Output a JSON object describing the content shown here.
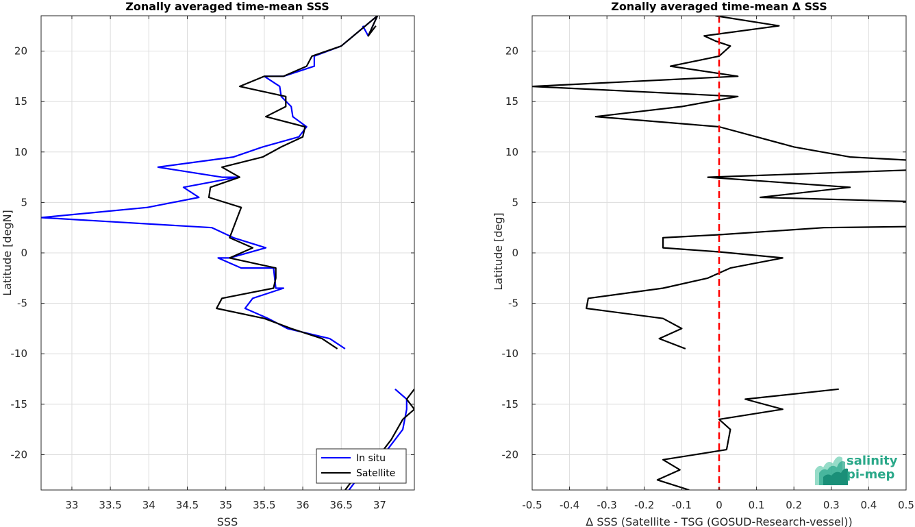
{
  "chart_data": [
    {
      "type": "line",
      "title": "Zonally averaged time-mean SSS",
      "xlabel": "SSS",
      "ylabel": "Latitude [degN]",
      "xlim": [
        32.6,
        37.45
      ],
      "ylim": [
        -23.5,
        23.5
      ],
      "xticks": [
        "33",
        "33.5",
        "34",
        "34.5",
        "35",
        "35.5",
        "36",
        "36.5",
        "37"
      ],
      "yticks": [
        "20",
        "15",
        "10",
        "5",
        "0",
        "-5",
        "-10",
        "-15",
        "-20"
      ],
      "grid": true,
      "legend": "bottom-right",
      "series": [
        {
          "name": "In situ",
          "color": "#0000ff",
          "segments": [
            [
              [
                36.78,
                22.5
              ],
              [
                36.85,
                21.5
              ],
              [
                36.97,
                23.5
              ],
              [
                36.5,
                20.5
              ],
              [
                36.15,
                19.5
              ],
              [
                36.15,
                18.5
              ],
              [
                35.75,
                17.5
              ],
              [
                35.5,
                17.5
              ],
              [
                35.7,
                16.5
              ],
              [
                35.72,
                15.5
              ],
              [
                35.85,
                14.5
              ],
              [
                35.87,
                13.5
              ],
              [
                36.05,
                12.5
              ],
              [
                35.95,
                11.5
              ],
              [
                35.48,
                10.5
              ],
              [
                35.1,
                9.5
              ],
              [
                34.12,
                8.5
              ],
              [
                34.95,
                7.5
              ],
              [
                35.15,
                7.5
              ],
              [
                34.45,
                6.5
              ],
              [
                34.65,
                5.5
              ],
              [
                33.98,
                4.5
              ],
              [
                32.6,
                3.5
              ],
              [
                34.82,
                2.5
              ],
              [
                35.1,
                1.5
              ],
              [
                35.52,
                0.5
              ],
              [
                35.05,
                -0.5
              ],
              [
                34.9,
                -0.5
              ],
              [
                35.2,
                -1.5
              ],
              [
                35.62,
                -1.5
              ],
              [
                35.65,
                -3.5
              ],
              [
                35.75,
                -3.5
              ],
              [
                35.35,
                -4.5
              ],
              [
                35.25,
                -5.5
              ],
              [
                35.55,
                -6.5
              ],
              [
                35.8,
                -7.5
              ],
              [
                36.35,
                -8.5
              ],
              [
                36.55,
                -9.5
              ]
            ],
            [
              [
                37.2,
                -13.5
              ],
              [
                37.35,
                -14.5
              ],
              [
                37.35,
                -15.5
              ],
              [
                37.3,
                -17.5
              ],
              [
                37.2,
                -18.5
              ],
              [
                37.0,
                -20.5
              ],
              [
                36.82,
                -21.5
              ],
              [
                36.7,
                -22.5
              ],
              [
                36.6,
                -23.5
              ]
            ]
          ]
        },
        {
          "name": "Satellite",
          "color": "#000000",
          "segments": [
            [
              [
                36.95,
                22.5
              ],
              [
                36.85,
                21.5
              ],
              [
                36.97,
                23.5
              ],
              [
                36.5,
                20.5
              ],
              [
                36.12,
                19.5
              ],
              [
                36.05,
                18.5
              ],
              [
                35.75,
                17.5
              ],
              [
                35.5,
                17.5
              ],
              [
                35.18,
                16.5
              ],
              [
                35.78,
                15.5
              ],
              [
                35.78,
                14.5
              ],
              [
                35.52,
                13.5
              ],
              [
                36.03,
                12.5
              ],
              [
                36.0,
                11.5
              ],
              [
                35.72,
                10.5
              ],
              [
                35.48,
                9.5
              ],
              [
                34.95,
                8.5
              ],
              [
                35.18,
                7.5
              ],
              [
                34.8,
                6.5
              ],
              [
                34.78,
                5.5
              ],
              [
                35.2,
                4.5
              ],
              [
                35.15,
                3.5
              ],
              [
                35.1,
                2.5
              ],
              [
                35.05,
                1.5
              ],
              [
                35.35,
                0.5
              ],
              [
                35.05,
                -0.5
              ],
              [
                35.65,
                -1.5
              ],
              [
                35.65,
                -2.5
              ],
              [
                35.62,
                -3.5
              ],
              [
                34.95,
                -4.5
              ],
              [
                34.88,
                -5.5
              ],
              [
                35.5,
                -6.5
              ],
              [
                35.85,
                -7.5
              ],
              [
                36.25,
                -8.5
              ],
              [
                36.45,
                -9.5
              ]
            ],
            [
              [
                37.45,
                -13.5
              ],
              [
                37.35,
                -14.5
              ],
              [
                37.45,
                -15.5
              ],
              [
                37.3,
                -16.5
              ],
              [
                37.15,
                -18.5
              ],
              [
                36.95,
                -20.5
              ],
              [
                36.8,
                -21.5
              ],
              [
                36.65,
                -22.5
              ],
              [
                36.55,
                -23.5
              ]
            ]
          ]
        }
      ]
    },
    {
      "type": "line",
      "title": "Zonally averaged time-mean Δ SSS",
      "xlabel": "Δ SSS (Satellite - TSG (GOSUD-Research-vessel))",
      "ylabel": "Latitude [deg]",
      "xlim": [
        -0.5,
        0.5
      ],
      "ylim": [
        -23.5,
        23.5
      ],
      "xticks": [
        "-0.5",
        "-0.4",
        "-0.3",
        "-0.2",
        "-0.1",
        "0",
        "0.1",
        "0.2",
        "0.3",
        "0.4",
        "0.5"
      ],
      "yticks": [
        "20",
        "15",
        "10",
        "5",
        "0",
        "-5",
        "-10",
        "-15",
        "-20"
      ],
      "grid": true,
      "reference_line": {
        "x": 0,
        "color": "#ff0000",
        "style": "dashed"
      },
      "series": [
        {
          "color": "#000000",
          "segments": [
            [
              [
                -0.01,
                23.5
              ],
              [
                0.16,
                22.5
              ],
              [
                -0.04,
                21.5
              ],
              [
                -0.01,
                21.0
              ],
              [
                0.03,
                20.5
              ],
              [
                0.0,
                19.5
              ],
              [
                -0.13,
                18.5
              ],
              [
                0.05,
                17.5
              ],
              [
                -0.5,
                16.5
              ],
              [
                0.05,
                15.5
              ],
              [
                -0.1,
                14.5
              ],
              [
                -0.33,
                13.5
              ],
              [
                0.0,
                12.5
              ],
              [
                0.1,
                11.5
              ],
              [
                0.2,
                10.5
              ],
              [
                0.35,
                9.5
              ],
              [
                0.5,
                9.2
              ]
            ],
            [
              [
                0.5,
                8.2
              ],
              [
                -0.03,
                7.5
              ],
              [
                0.35,
                6.5
              ],
              [
                0.11,
                5.5
              ],
              [
                0.5,
                5.1
              ]
            ],
            [
              [
                0.5,
                2.6
              ],
              [
                0.28,
                2.5
              ],
              [
                0.0,
                1.8
              ],
              [
                -0.15,
                1.5
              ],
              [
                -0.15,
                0.5
              ],
              [
                0.0,
                0.1
              ],
              [
                0.17,
                -0.5
              ],
              [
                0.03,
                -1.5
              ],
              [
                0.0,
                -2.0
              ],
              [
                -0.03,
                -2.5
              ],
              [
                -0.15,
                -3.5
              ],
              [
                -0.35,
                -4.5
              ],
              [
                -0.355,
                -5.5
              ],
              [
                -0.15,
                -6.5
              ],
              [
                -0.1,
                -7.5
              ],
              [
                -0.16,
                -8.5
              ],
              [
                -0.09,
                -9.5
              ]
            ],
            [
              [
                0.32,
                -13.5
              ],
              [
                0.07,
                -14.5
              ],
              [
                0.17,
                -15.5
              ],
              [
                0.0,
                -16.5
              ],
              [
                0.03,
                -17.5
              ],
              [
                0.02,
                -19.5
              ],
              [
                -0.15,
                -20.5
              ],
              [
                -0.105,
                -21.5
              ],
              [
                -0.165,
                -22.5
              ],
              [
                -0.08,
                -23.5
              ]
            ]
          ]
        }
      ]
    }
  ],
  "logo": {
    "line1": "salinity",
    "line2": "pi-mep"
  }
}
